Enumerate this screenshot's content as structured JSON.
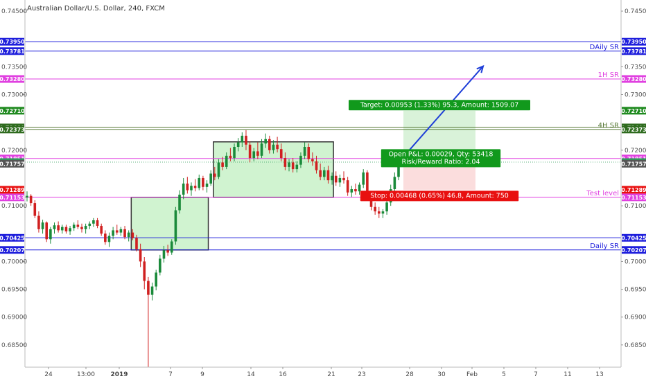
{
  "chart_data": {
    "type": "candlestick",
    "title": "Australian Dollar/U.S. Dollar, 240, FXCM",
    "ylim": [
      0.681,
      0.747
    ],
    "y_ticks": [
      {
        "value": 0.745,
        "label": "0.74500"
      },
      {
        "value": 0.735,
        "label": "0.73500"
      },
      {
        "value": 0.73,
        "label": "0.73000"
      },
      {
        "value": 0.72,
        "label": "0.72000"
      },
      {
        "value": 0.71,
        "label": "0.71000"
      },
      {
        "value": 0.7,
        "label": "0.70000"
      },
      {
        "value": 0.695,
        "label": "0.69500"
      },
      {
        "value": 0.69,
        "label": "0.69000"
      },
      {
        "value": 0.685,
        "label": "0.68500"
      }
    ],
    "x_ticks": [
      {
        "label": "24",
        "bold": false
      },
      {
        "label": "13:00",
        "bold": false
      },
      {
        "label": "2019",
        "bold": true
      },
      {
        "label": "7",
        "bold": false
      },
      {
        "label": "9",
        "bold": false
      },
      {
        "label": "14",
        "bold": false
      },
      {
        "label": "16",
        "bold": false
      },
      {
        "label": "21",
        "bold": false
      },
      {
        "label": "23",
        "bold": false
      },
      {
        "label": "28",
        "bold": false
      },
      {
        "label": "30",
        "bold": false
      },
      {
        "label": "Feb",
        "bold": false
      },
      {
        "label": "5",
        "bold": false
      },
      {
        "label": "7",
        "bold": false
      },
      {
        "label": "11",
        "bold": false
      },
      {
        "label": "13",
        "bold": false
      }
    ],
    "hlines": [
      {
        "value": 0.7395,
        "label": "0.73950",
        "name": "",
        "color": "#1e1edc"
      },
      {
        "value": 0.73781,
        "label": "0.73781",
        "name": "DAily SR",
        "color": "#1e1edc"
      },
      {
        "value": 0.7328,
        "label": "0.73280",
        "name": "1H SR",
        "color": "#e040e0"
      },
      {
        "value": 0.72409,
        "label": "0.72409",
        "name": "",
        "color": "#557733"
      },
      {
        "value": 0.72373,
        "label": "0.72373",
        "name": "4H SR",
        "color": "#557733"
      },
      {
        "value": 0.71851,
        "label": "0.71851",
        "name": "",
        "color": "#e040e0"
      },
      {
        "value": 0.71153,
        "label": "0.71153",
        "name": "Test level",
        "color": "#e040e0"
      },
      {
        "value": 0.70425,
        "label": "0.70425",
        "name": "",
        "color": "#1e1edc"
      },
      {
        "value": 0.70207,
        "label": "0.70207",
        "name": "Daily SR",
        "color": "#1e1edc"
      }
    ],
    "price_badges": [
      {
        "value": 0.7271,
        "label": "0.72710",
        "color": "#1f8a1f"
      },
      {
        "value": 0.71786,
        "label": "0.71786",
        "color": "#2e9e5a"
      },
      {
        "value": 0.71757,
        "label": "0.71757",
        "color": "#555555"
      },
      {
        "value": 0.71289,
        "label": "0.71289",
        "color": "#e81010"
      }
    ],
    "boxes": [
      {
        "date_from": "Dec 27",
        "date_to": "Jan 3",
        "top": 0.71153,
        "bottom": 0.70207
      },
      {
        "date_from": "Jan 4",
        "date_to": "Jan 11",
        "top": 0.7215,
        "bottom": 0.71153
      }
    ],
    "position": {
      "entry": 0.71757,
      "target_price": 0.7271,
      "stop_price": 0.71289,
      "target_text": "Target: 0.00953 (1.33%) 95.3, Amount: 1509.07",
      "pnl_text": "Open P&L: 0.00029, Qty: 53418",
      "rr_text": "Risk/Reward Ratio: 2.04",
      "stop_text": "Stop: 0.00468 (0.65%) 46.8, Amount: 750"
    },
    "arrow": {
      "from_price": 0.7188,
      "to_price": 0.7351
    },
    "candles": [
      [
        0.7115,
        0.7126,
        0.7108,
        0.7118
      ],
      [
        0.7118,
        0.7121,
        0.71,
        0.7105
      ],
      [
        0.7105,
        0.711,
        0.7078,
        0.7082
      ],
      [
        0.7082,
        0.709,
        0.7052,
        0.7058
      ],
      [
        0.7058,
        0.7075,
        0.705,
        0.707
      ],
      [
        0.707,
        0.7072,
        0.7035,
        0.704
      ],
      [
        0.704,
        0.7062,
        0.7032,
        0.7058
      ],
      [
        0.7058,
        0.707,
        0.705,
        0.7065
      ],
      [
        0.7065,
        0.7072,
        0.7052,
        0.7056
      ],
      [
        0.7056,
        0.7066,
        0.705,
        0.7062
      ],
      [
        0.7062,
        0.7066,
        0.705,
        0.7054
      ],
      [
        0.7054,
        0.7064,
        0.7048,
        0.706
      ],
      [
        0.706,
        0.707,
        0.7055,
        0.7066
      ],
      [
        0.7066,
        0.7074,
        0.7058,
        0.7062
      ],
      [
        0.7062,
        0.7068,
        0.7052,
        0.7058
      ],
      [
        0.7058,
        0.7068,
        0.705,
        0.7064
      ],
      [
        0.7064,
        0.7072,
        0.7058,
        0.7068
      ],
      [
        0.7068,
        0.7078,
        0.7062,
        0.7074
      ],
      [
        0.7074,
        0.7078,
        0.706,
        0.7064
      ],
      [
        0.7064,
        0.7068,
        0.7046,
        0.705
      ],
      [
        0.705,
        0.7056,
        0.703,
        0.7035
      ],
      [
        0.7035,
        0.7052,
        0.7026,
        0.7046
      ],
      [
        0.7046,
        0.7062,
        0.704,
        0.7056
      ],
      [
        0.7056,
        0.7066,
        0.7048,
        0.7052
      ],
      [
        0.7052,
        0.7062,
        0.7046,
        0.7058
      ],
      [
        0.7058,
        0.7064,
        0.704,
        0.7044
      ],
      [
        0.7044,
        0.7056,
        0.7036,
        0.7052
      ],
      [
        0.7052,
        0.7058,
        0.7038,
        0.7042
      ],
      [
        0.7042,
        0.7048,
        0.7018,
        0.7022
      ],
      [
        0.7022,
        0.7032,
        0.699,
        0.7
      ],
      [
        0.7,
        0.7008,
        0.695,
        0.6965
      ],
      [
        0.6965,
        0.6972,
        0.681,
        0.694
      ],
      [
        0.694,
        0.6962,
        0.693,
        0.6955
      ],
      [
        0.6955,
        0.6985,
        0.6948,
        0.698
      ],
      [
        0.698,
        0.7012,
        0.6975,
        0.7005
      ],
      [
        0.7005,
        0.7028,
        0.6998,
        0.702
      ],
      [
        0.702,
        0.703,
        0.701,
        0.7016
      ],
      [
        0.7016,
        0.704,
        0.7012,
        0.7036
      ],
      [
        0.7036,
        0.7098,
        0.703,
        0.7092
      ],
      [
        0.7092,
        0.7128,
        0.7086,
        0.712
      ],
      [
        0.712,
        0.715,
        0.7112,
        0.714
      ],
      [
        0.714,
        0.7152,
        0.7122,
        0.7128
      ],
      [
        0.7128,
        0.7142,
        0.7118,
        0.7136
      ],
      [
        0.7136,
        0.7148,
        0.7126,
        0.7132
      ],
      [
        0.7132,
        0.7156,
        0.7128,
        0.715
      ],
      [
        0.715,
        0.7154,
        0.7128,
        0.7134
      ],
      [
        0.7134,
        0.7146,
        0.7124,
        0.714
      ],
      [
        0.714,
        0.7164,
        0.7136,
        0.7158
      ],
      [
        0.7158,
        0.717,
        0.7146,
        0.7152
      ],
      [
        0.7152,
        0.7184,
        0.7148,
        0.7178
      ],
      [
        0.7178,
        0.7188,
        0.7164,
        0.717
      ],
      [
        0.717,
        0.7196,
        0.7166,
        0.719
      ],
      [
        0.719,
        0.7204,
        0.718,
        0.7186
      ],
      [
        0.7186,
        0.7212,
        0.718,
        0.7206
      ],
      [
        0.7206,
        0.7222,
        0.7198,
        0.7214
      ],
      [
        0.7214,
        0.7232,
        0.7206,
        0.7226
      ],
      [
        0.7226,
        0.7236,
        0.72,
        0.721
      ],
      [
        0.721,
        0.7216,
        0.7178,
        0.7186
      ],
      [
        0.7186,
        0.7204,
        0.718,
        0.7198
      ],
      [
        0.7198,
        0.7214,
        0.7184,
        0.719
      ],
      [
        0.719,
        0.722,
        0.7186,
        0.7212
      ],
      [
        0.7212,
        0.723,
        0.7204,
        0.722
      ],
      [
        0.722,
        0.7226,
        0.7194,
        0.72
      ],
      [
        0.72,
        0.7218,
        0.7194,
        0.721
      ],
      [
        0.721,
        0.7224,
        0.7196,
        0.7202
      ],
      [
        0.7202,
        0.7212,
        0.718,
        0.7186
      ],
      [
        0.7186,
        0.7196,
        0.7164,
        0.717
      ],
      [
        0.717,
        0.7184,
        0.7162,
        0.7178
      ],
      [
        0.7178,
        0.7186,
        0.716,
        0.7166
      ],
      [
        0.7166,
        0.718,
        0.716,
        0.7174
      ],
      [
        0.7174,
        0.7196,
        0.7168,
        0.719
      ],
      [
        0.719,
        0.7214,
        0.7184,
        0.7206
      ],
      [
        0.7206,
        0.7212,
        0.7178,
        0.7184
      ],
      [
        0.7184,
        0.7196,
        0.7172,
        0.718
      ],
      [
        0.718,
        0.719,
        0.7158,
        0.7164
      ],
      [
        0.7164,
        0.7176,
        0.7146,
        0.7152
      ],
      [
        0.7152,
        0.717,
        0.7146,
        0.7164
      ],
      [
        0.7164,
        0.7172,
        0.714,
        0.7146
      ],
      [
        0.7146,
        0.716,
        0.7138,
        0.7154
      ],
      [
        0.7154,
        0.7162,
        0.7136,
        0.7142
      ],
      [
        0.7142,
        0.7156,
        0.7134,
        0.715
      ],
      [
        0.715,
        0.7162,
        0.714,
        0.7146
      ],
      [
        0.7146,
        0.7152,
        0.7118,
        0.7124
      ],
      [
        0.7124,
        0.7136,
        0.7116,
        0.713
      ],
      [
        0.713,
        0.714,
        0.712,
        0.7126
      ],
      [
        0.7126,
        0.7142,
        0.712,
        0.7138
      ],
      [
        0.7138,
        0.7166,
        0.7132,
        0.716
      ],
      [
        0.716,
        0.7164,
        0.7114,
        0.712
      ],
      [
        0.712,
        0.7126,
        0.7092,
        0.7098
      ],
      [
        0.7098,
        0.7106,
        0.7084,
        0.709
      ],
      [
        0.709,
        0.7098,
        0.7078,
        0.7086
      ],
      [
        0.7086,
        0.7094,
        0.7078,
        0.709
      ],
      [
        0.709,
        0.7112,
        0.7084,
        0.7106
      ],
      [
        0.7106,
        0.7138,
        0.71,
        0.713
      ],
      [
        0.713,
        0.716,
        0.7124,
        0.7152
      ],
      [
        0.7152,
        0.718,
        0.7146,
        0.7176
      ]
    ]
  }
}
